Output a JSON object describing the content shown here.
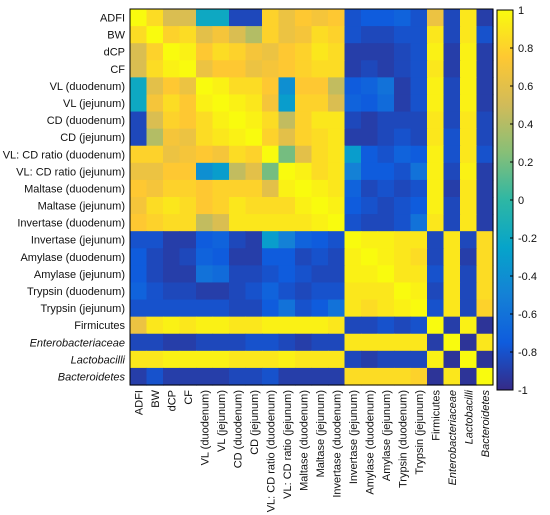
{
  "chart_data": {
    "type": "heatmap",
    "variables": [
      {
        "label": "ADFI",
        "italic": false
      },
      {
        "label": "BW",
        "italic": false
      },
      {
        "label": "dCP",
        "italic": false
      },
      {
        "label": "CF",
        "italic": false
      },
      {
        "label": "VL (duodenum)",
        "italic": false
      },
      {
        "label": "VL (jejunum)",
        "italic": false
      },
      {
        "label": "CD (duodenum)",
        "italic": false
      },
      {
        "label": "CD (jejunum)",
        "italic": false
      },
      {
        "label": "VL: CD ratio (duodenum)",
        "italic": false
      },
      {
        "label": "VL: CD ratio (jejunum)",
        "italic": false
      },
      {
        "label": "Maltase (duodenum)",
        "italic": false
      },
      {
        "label": "Maltase (jejunum)",
        "italic": false
      },
      {
        "label": "Invertase (duodenum)",
        "italic": false
      },
      {
        "label": "Invertase (jejunum)",
        "italic": false
      },
      {
        "label": "Amylase (duodenum)",
        "italic": false
      },
      {
        "label": "Amylase (jejunum)",
        "italic": false
      },
      {
        "label": "Trypsin (duodenum)",
        "italic": false
      },
      {
        "label": "Trypsin (jejunum)",
        "italic": false
      },
      {
        "label": "Firmicutes",
        "italic": false
      },
      {
        "label": "Enterobacteriaceae",
        "italic": true
      },
      {
        "label": "Lactobacilli",
        "italic": true
      },
      {
        "label": "Bacteroidetes",
        "italic": true
      }
    ],
    "values": [
      [
        1.0,
        0.85,
        0.55,
        0.55,
        -0.2,
        -0.2,
        -0.85,
        -0.85,
        0.8,
        0.65,
        0.75,
        0.7,
        0.75,
        -0.8,
        -0.75,
        -0.75,
        -0.7,
        -0.8,
        0.65,
        -0.85,
        0.9,
        -0.9
      ],
      [
        0.85,
        1.0,
        0.8,
        0.85,
        0.6,
        0.7,
        0.55,
        0.4,
        0.8,
        0.65,
        0.7,
        0.85,
        0.8,
        -0.8,
        -0.85,
        -0.85,
        -0.8,
        -0.8,
        0.9,
        -0.85,
        0.9,
        -0.8
      ],
      [
        0.55,
        0.8,
        1.0,
        0.95,
        0.75,
        0.85,
        0.8,
        0.7,
        0.65,
        0.75,
        0.8,
        0.9,
        0.85,
        -0.9,
        -0.9,
        -0.9,
        -0.85,
        -0.8,
        0.95,
        -0.9,
        0.95,
        -0.9
      ],
      [
        0.55,
        0.85,
        0.95,
        1.0,
        0.65,
        0.75,
        0.75,
        0.65,
        0.7,
        0.75,
        0.8,
        0.85,
        0.85,
        -0.9,
        -0.85,
        -0.9,
        -0.85,
        -0.8,
        0.9,
        -0.9,
        0.95,
        -0.9
      ],
      [
        -0.2,
        0.6,
        0.75,
        0.65,
        1.0,
        0.95,
        0.85,
        0.85,
        0.75,
        -0.4,
        0.75,
        0.75,
        0.45,
        -0.75,
        -0.7,
        -0.6,
        -0.9,
        -0.8,
        0.95,
        -0.85,
        0.95,
        -0.9
      ],
      [
        -0.2,
        0.7,
        0.85,
        0.75,
        0.95,
        1.0,
        0.95,
        0.9,
        0.7,
        -0.3,
        0.8,
        0.8,
        0.55,
        -0.7,
        -0.75,
        -0.65,
        -0.9,
        -0.8,
        0.95,
        -0.85,
        0.95,
        -0.9
      ],
      [
        -0.85,
        0.55,
        0.8,
        0.75,
        0.85,
        0.95,
        1.0,
        0.95,
        0.85,
        0.45,
        0.8,
        0.9,
        0.9,
        -0.85,
        -0.9,
        -0.85,
        -0.85,
        -0.85,
        0.9,
        -0.85,
        0.9,
        -0.85
      ],
      [
        -0.85,
        0.4,
        0.7,
        0.65,
        0.85,
        0.9,
        0.95,
        1.0,
        0.8,
        0.6,
        0.8,
        0.85,
        0.9,
        -0.9,
        -0.9,
        -0.85,
        -0.8,
        -0.85,
        0.9,
        -0.8,
        0.9,
        -0.85
      ],
      [
        0.8,
        0.8,
        0.65,
        0.7,
        0.75,
        0.7,
        0.85,
        0.8,
        1.0,
        0.2,
        0.6,
        0.85,
        0.9,
        -0.3,
        -0.75,
        -0.8,
        -0.7,
        -0.75,
        0.95,
        -0.8,
        0.9,
        -0.8
      ],
      [
        0.65,
        0.65,
        0.75,
        0.75,
        -0.4,
        -0.3,
        0.45,
        0.6,
        0.2,
        1.0,
        0.95,
        0.85,
        0.9,
        -0.5,
        -0.75,
        -0.75,
        -0.8,
        -0.6,
        0.95,
        -0.85,
        0.95,
        -0.9
      ],
      [
        0.75,
        0.7,
        0.8,
        0.8,
        0.75,
        0.8,
        0.8,
        0.8,
        0.6,
        0.95,
        1.0,
        0.95,
        0.9,
        -0.7,
        -0.85,
        -0.8,
        -0.85,
        -0.8,
        0.95,
        -0.9,
        0.9,
        -0.9
      ],
      [
        0.7,
        0.85,
        0.9,
        0.85,
        0.75,
        0.8,
        0.9,
        0.85,
        0.85,
        0.85,
        0.95,
        1.0,
        0.95,
        -0.75,
        -0.8,
        -0.85,
        -0.8,
        -0.75,
        0.95,
        -0.85,
        0.9,
        -0.9
      ],
      [
        0.75,
        0.8,
        0.85,
        0.85,
        0.45,
        0.55,
        0.9,
        0.9,
        0.9,
        0.9,
        0.9,
        0.95,
        1.0,
        -0.8,
        -0.85,
        -0.85,
        -0.8,
        -0.6,
        0.9,
        -0.85,
        0.9,
        -0.9
      ],
      [
        -0.8,
        -0.8,
        -0.9,
        -0.9,
        -0.75,
        -0.7,
        -0.85,
        -0.9,
        -0.3,
        -0.5,
        -0.7,
        -0.75,
        -0.8,
        1.0,
        0.95,
        0.95,
        0.9,
        0.9,
        -0.85,
        0.9,
        -0.85,
        0.85
      ],
      [
        -0.75,
        -0.85,
        -0.9,
        -0.85,
        -0.7,
        -0.75,
        -0.9,
        -0.9,
        -0.75,
        -0.75,
        -0.85,
        -0.8,
        -0.85,
        0.95,
        1.0,
        0.95,
        0.9,
        0.85,
        -0.85,
        0.9,
        -0.9,
        0.85
      ],
      [
        -0.75,
        -0.85,
        -0.9,
        -0.9,
        -0.6,
        -0.65,
        -0.85,
        -0.85,
        -0.8,
        -0.75,
        -0.8,
        -0.85,
        -0.85,
        0.95,
        0.95,
        1.0,
        0.9,
        0.9,
        -0.8,
        0.9,
        -0.85,
        0.85
      ],
      [
        -0.7,
        -0.8,
        -0.85,
        -0.85,
        -0.9,
        -0.9,
        -0.85,
        -0.8,
        -0.7,
        -0.8,
        -0.85,
        -0.8,
        -0.8,
        0.9,
        0.9,
        0.9,
        1.0,
        0.95,
        -0.85,
        0.9,
        -0.85,
        0.85
      ],
      [
        -0.8,
        -0.8,
        -0.8,
        -0.8,
        -0.8,
        -0.8,
        -0.85,
        -0.85,
        -0.75,
        -0.6,
        -0.8,
        -0.75,
        -0.6,
        0.9,
        0.85,
        0.9,
        0.95,
        1.0,
        -0.8,
        0.9,
        -0.85,
        0.8
      ],
      [
        0.65,
        0.9,
        0.95,
        0.9,
        0.95,
        0.95,
        0.9,
        0.9,
        0.95,
        0.95,
        0.95,
        0.95,
        0.9,
        -0.85,
        -0.85,
        -0.8,
        -0.85,
        -0.8,
        1.0,
        -0.9,
        0.95,
        -0.95
      ],
      [
        -0.85,
        -0.85,
        -0.9,
        -0.9,
        -0.85,
        -0.85,
        -0.85,
        -0.8,
        -0.8,
        -0.85,
        -0.9,
        -0.85,
        -0.85,
        0.9,
        0.9,
        0.9,
        0.9,
        0.9,
        -0.9,
        1.0,
        -0.95,
        0.9
      ],
      [
        0.9,
        0.9,
        0.95,
        0.95,
        0.95,
        0.95,
        0.9,
        0.9,
        0.9,
        0.95,
        0.9,
        0.9,
        0.9,
        -0.85,
        -0.9,
        -0.85,
        -0.85,
        -0.85,
        0.95,
        -0.95,
        1.0,
        -0.95
      ],
      [
        -0.9,
        -0.8,
        -0.9,
        -0.9,
        -0.9,
        -0.9,
        -0.85,
        -0.85,
        -0.8,
        -0.9,
        -0.9,
        -0.9,
        -0.9,
        0.85,
        0.85,
        0.85,
        0.85,
        0.8,
        -0.95,
        0.9,
        -0.95,
        1.0
      ]
    ],
    "colorbar": {
      "min": -1,
      "max": 1,
      "ticks": [
        1,
        0.8,
        0.6,
        0.4,
        0.2,
        0,
        -0.2,
        -0.4,
        -0.6,
        -0.8,
        -1
      ],
      "tick_labels": [
        "1",
        "0.8",
        "0.6",
        "0.4",
        "0.2",
        "0",
        "-0.2",
        "-0.4",
        "-0.6",
        "-0.8",
        "-1"
      ]
    },
    "colormap": "parula",
    "colormap_stops": [
      "#352a87",
      "#0f5cdd",
      "#1481d6",
      "#06a4ca",
      "#2eb7a4",
      "#87bf77",
      "#d1bb59",
      "#fec832",
      "#f9fb0e"
    ]
  }
}
